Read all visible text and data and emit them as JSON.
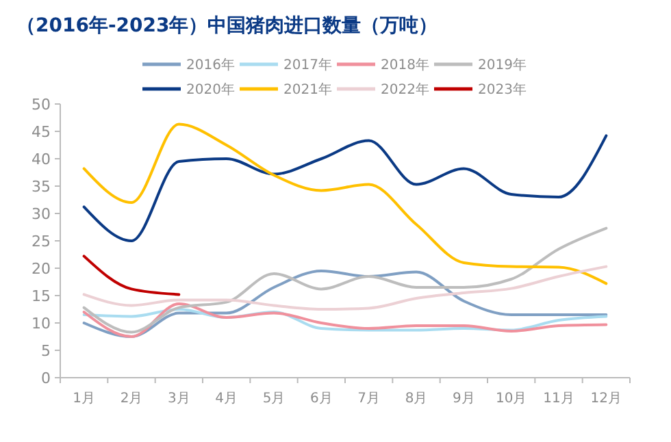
{
  "chart_data": {
    "type": "line",
    "title": "（2016年-2023年）中国猪肉进口数量（万吨）",
    "categories": [
      "1月",
      "2月",
      "3月",
      "4月",
      "5月",
      "6月",
      "7月",
      "8月",
      "9月",
      "10月",
      "11月",
      "12月"
    ],
    "series": [
      {
        "name": "2016年",
        "color": "#7f9fc3",
        "values": [
          10,
          7.5,
          11.8,
          11.8,
          16.5,
          19.5,
          18.5,
          19.3,
          14,
          11.5,
          11.5,
          11.5
        ]
      },
      {
        "name": "2017年",
        "color": "#a9dcf0",
        "values": [
          11.5,
          11.2,
          12.5,
          11,
          12,
          9,
          8.7,
          8.7,
          9,
          8.7,
          10.5,
          11.2
        ]
      },
      {
        "name": "2018年",
        "color": "#f0909c",
        "values": [
          12,
          7.5,
          13.5,
          11,
          11.8,
          10,
          9,
          9.5,
          9.5,
          8.5,
          9.5,
          9.7
        ]
      },
      {
        "name": "2019年",
        "color": "#bdbdbd",
        "values": [
          12.8,
          8.3,
          12.8,
          13.8,
          19,
          16.2,
          18.5,
          16.5,
          16.5,
          18,
          23.5,
          27.3
        ]
      },
      {
        "name": "2020年",
        "color": "#0b3a85",
        "values": [
          31.2,
          25,
          39.5,
          40,
          37.2,
          40,
          43.3,
          35.3,
          38.2,
          33.5,
          33,
          44.2
        ]
      },
      {
        "name": "2021年",
        "color": "#ffc000",
        "values": [
          38.2,
          32,
          46.3,
          42.5,
          37,
          34.2,
          35.3,
          28,
          21,
          20.3,
          20.2,
          17.2
        ]
      },
      {
        "name": "2022年",
        "color": "#ecd0d4",
        "values": [
          15.2,
          13.2,
          14.2,
          14.2,
          13.2,
          12.5,
          12.7,
          14.5,
          15.5,
          16.3,
          18.5,
          20.3
        ]
      },
      {
        "name": "2023年",
        "color": "#c00000",
        "values": [
          22.2,
          16.2,
          15.2,
          null,
          null,
          null,
          null,
          null,
          null,
          null,
          null,
          null
        ]
      }
    ],
    "ylim": [
      0,
      50
    ],
    "yticks": [
      0,
      5,
      10,
      15,
      20,
      25,
      30,
      35,
      40,
      45,
      50
    ],
    "grid": false,
    "legend": "top",
    "marker": "none",
    "line_style": "solid"
  }
}
